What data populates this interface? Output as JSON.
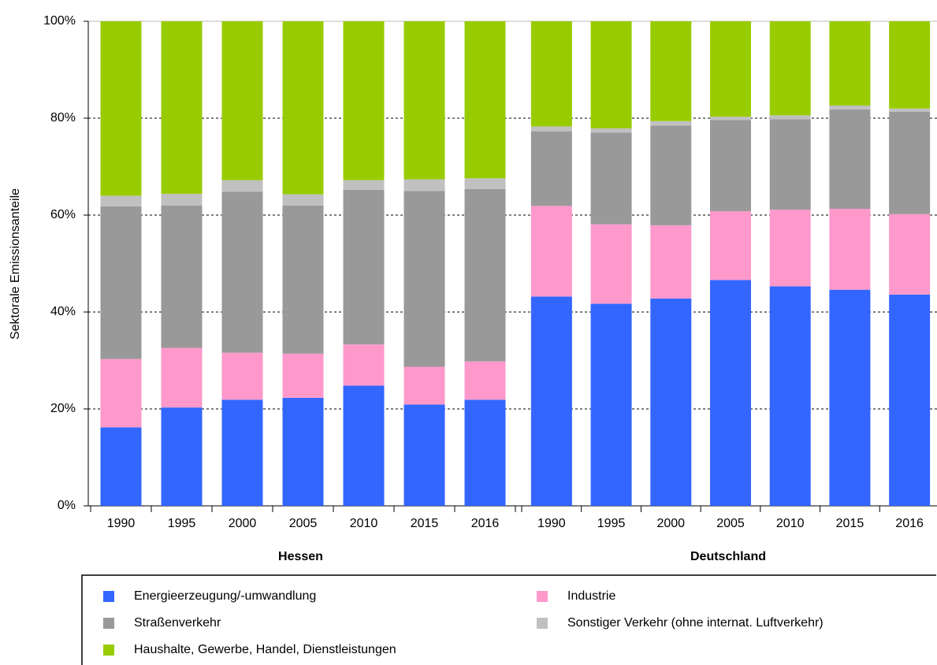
{
  "chart_data": {
    "type": "stacked_bar",
    "ylabel": "Sektorale Emissionsanteile",
    "categories": [
      "1990",
      "1995",
      "2000",
      "2005",
      "2010",
      "2015",
      "2016",
      "1990",
      "1995",
      "2000",
      "2005",
      "2010",
      "2015",
      "2016"
    ],
    "group_labels": [
      "Hessen",
      "Deutschland"
    ],
    "ylim": [
      0,
      100
    ],
    "yticks": [
      {
        "value": 0,
        "label": "0%"
      },
      {
        "value": 20,
        "label": "20%"
      },
      {
        "value": 40,
        "label": "40%"
      },
      {
        "value": 60,
        "label": "60%"
      },
      {
        "value": 80,
        "label": "80%"
      },
      {
        "value": 100,
        "label": "100%"
      }
    ],
    "grid": true,
    "legend": "bottom",
    "series": [
      {
        "name": "Energieerzeugung/-umwandlung",
        "color": "#3366ff",
        "values": [
          16.2,
          20.3,
          21.9,
          22.3,
          24.8,
          20.9,
          21.9,
          43.2,
          41.7,
          42.8,
          46.6,
          45.3,
          44.6,
          43.6
        ]
      },
      {
        "name": "Industrie",
        "color": "#ff99cc",
        "values": [
          14.1,
          12.3,
          9.7,
          9.1,
          8.5,
          7.8,
          7.9,
          18.7,
          16.4,
          15.1,
          14.2,
          15.8,
          16.7,
          16.6
        ]
      },
      {
        "name": "Straßenverkehr",
        "color": "#999999",
        "values": [
          31.5,
          29.4,
          33.2,
          30.6,
          31.9,
          36.3,
          35.6,
          15.4,
          18.9,
          20.6,
          18.8,
          18.7,
          20.5,
          21.1
        ]
      },
      {
        "name": "Sonstiger Verkehr (ohne internat. Luftverkehr)",
        "color": "#c0c0c0",
        "values": [
          2.2,
          2.4,
          2.4,
          2.3,
          2.0,
          2.4,
          2.2,
          1.0,
          0.9,
          0.9,
          0.7,
          0.8,
          0.8,
          0.7
        ]
      },
      {
        "name": "Haushalte, Gewerbe, Handel, Dienstleistungen",
        "color": "#99cc00",
        "values": [
          36.0,
          35.6,
          32.8,
          35.7,
          32.8,
          32.6,
          32.4,
          21.7,
          22.1,
          20.6,
          19.7,
          19.4,
          17.4,
          18.0
        ]
      }
    ]
  }
}
